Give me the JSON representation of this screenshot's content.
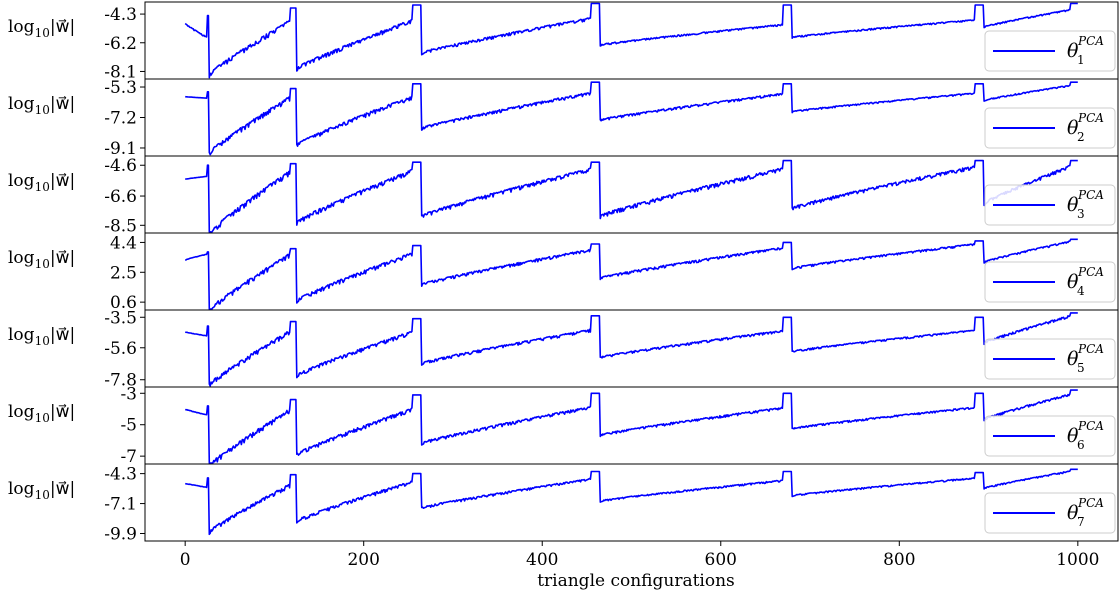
{
  "chart_data": {
    "type": "line",
    "xlabel": "triangle configurations",
    "xlim": [
      -45,
      1045
    ],
    "xticks": [
      0,
      200,
      400,
      600,
      800,
      1000
    ],
    "xtick_labels": [
      "0",
      "200",
      "400",
      "600",
      "800",
      "1000"
    ],
    "grid": false,
    "legend_placement": "right",
    "line_color": "#0000ff",
    "panels": [
      {
        "ylabel": "log10|w|",
        "ylabel_main": "log",
        "ylabel_sub": "10",
        "ylabel_rest": "|w⃗|",
        "yticks": [
          -4.3,
          -6.2,
          -8.1
        ],
        "ytick_labels": [
          "-4.3",
          "-6.2",
          "-8.1"
        ],
        "ylim": [
          -8.6,
          -3.5
        ],
        "legend": {
          "symbol": "θ",
          "sup": "PCA",
          "sub": "1"
        },
        "series": {
          "name": "θ1PCA",
          "segment_boundaries": [
            27,
            125,
            265,
            465,
            680,
            895
          ],
          "start": -4.9,
          "segment_starts": [
            -8.2,
            -7.8,
            -6.8,
            -6.3,
            -5.8,
            -5.1
          ],
          "segment_ends": [
            -5.9,
            -4.4,
            -4.4,
            -4.4,
            -4.9,
            -4.6,
            -3.9
          ],
          "peaks": [
            -4.4,
            -3.9,
            -3.7,
            -3.6,
            -3.7,
            -3.7,
            -3.6
          ]
        }
      },
      {
        "ylabel": "log10|w|",
        "ylabel_main": "log",
        "ylabel_sub": "10",
        "ylabel_rest": "|w⃗|",
        "yticks": [
          -5.3,
          -7.2,
          -9.1
        ],
        "ytick_labels": [
          "-5.3",
          "-7.2",
          "-9.1"
        ],
        "ylim": [
          -9.6,
          -4.8
        ],
        "legend": {
          "symbol": "θ",
          "sup": "PCA",
          "sub": "2"
        },
        "series": {
          "name": "θ2PCA",
          "segment_boundaries": [
            27,
            125,
            265,
            465,
            680,
            895
          ],
          "start": -5.9,
          "segment_starts": [
            -9.3,
            -8.8,
            -7.8,
            -7.3,
            -6.8,
            -6.1
          ],
          "segment_ends": [
            -6.0,
            -5.6,
            -5.6,
            -5.5,
            -5.6,
            -5.6,
            -5.1
          ],
          "peaks": [
            -5.6,
            -5.4,
            -5.1,
            -5.0,
            -5.1,
            -5.1,
            -5.0
          ]
        }
      },
      {
        "ylabel": "log10|w|",
        "ylabel_main": "log",
        "ylabel_sub": "10",
        "ylabel_rest": "|w⃗|",
        "yticks": [
          -4.6,
          -6.6,
          -8.5
        ],
        "ytick_labels": [
          "-4.6",
          "-6.6",
          "-8.5"
        ],
        "ylim": [
          -9.0,
          -4.0
        ],
        "legend": {
          "symbol": "θ",
          "sup": "PCA",
          "sub": "3"
        },
        "series": {
          "name": "θ3PCA",
          "segment_boundaries": [
            27,
            125,
            265,
            465,
            680,
            895
          ],
          "start": -5.5,
          "segment_starts": [
            -8.9,
            -8.2,
            -7.8,
            -7.8,
            -7.3,
            -7.0
          ],
          "segment_ends": [
            -5.3,
            -4.6,
            -4.6,
            -4.6,
            -4.6,
            -4.5,
            -4.4
          ],
          "peaks": [
            -4.6,
            -4.5,
            -4.4,
            -4.4,
            -4.3,
            -4.3,
            -4.3
          ]
        }
      },
      {
        "ylabel": "log10|w|",
        "ylabel_main": "log",
        "ylabel_sub": "10",
        "ylabel_rest": "|w⃗|",
        "yticks": [
          4.4,
          2.5,
          0.6
        ],
        "ytick_labels": [
          "4.4",
          "2.5",
          "0.6"
        ],
        "ylim": [
          0.1,
          5.0
        ],
        "legend": {
          "symbol": "θ",
          "sup": "PCA",
          "sub": "4"
        },
        "series": {
          "name": "θ4PCA",
          "segment_boundaries": [
            27,
            125,
            265,
            465,
            680,
            895
          ],
          "start": 3.3,
          "segment_starts": [
            0.2,
            0.8,
            1.8,
            2.2,
            2.8,
            3.2
          ],
          "segment_ends": [
            3.7,
            4.0,
            4.0,
            4.1,
            4.2,
            4.4,
            4.6
          ],
          "peaks": [
            3.8,
            4.0,
            4.2,
            4.3,
            4.4,
            4.5,
            4.6
          ]
        }
      },
      {
        "ylabel": "log10|w|",
        "ylabel_main": "log",
        "ylabel_sub": "10",
        "ylabel_rest": "|w⃗|",
        "yticks": [
          -3.5,
          -5.6,
          -7.8
        ],
        "ytick_labels": [
          "-3.5",
          "-5.6",
          "-7.8"
        ],
        "ylim": [
          -8.3,
          -3.0
        ],
        "legend": {
          "symbol": "θ",
          "sup": "PCA",
          "sub": "5"
        },
        "series": {
          "name": "θ5PCA",
          "segment_boundaries": [
            27,
            125,
            265,
            465,
            680,
            895
          ],
          "start": -4.5,
          "segment_starts": [
            -8.0,
            -7.4,
            -6.6,
            -6.2,
            -5.8,
            -5.2
          ],
          "segment_ends": [
            -4.8,
            -4.1,
            -4.2,
            -4.2,
            -4.3,
            -4.3,
            -3.2
          ],
          "peaks": [
            -4.1,
            -3.8,
            -3.6,
            -3.4,
            -3.5,
            -3.5,
            -3.2
          ]
        }
      },
      {
        "ylabel": "log10|w|",
        "ylabel_main": "log",
        "ylabel_sub": "10",
        "ylabel_rest": "|w⃗|",
        "yticks": [
          -3,
          -5,
          -7
        ],
        "ytick_labels": [
          "-3",
          "-5",
          "-7"
        ],
        "ylim": [
          -7.5,
          -2.6
        ],
        "legend": {
          "symbol": "θ",
          "sup": "PCA",
          "sub": "6"
        },
        "series": {
          "name": "θ6PCA",
          "segment_boundaries": [
            27,
            125,
            265,
            465,
            680,
            895
          ],
          "start": -4.0,
          "segment_starts": [
            -7.5,
            -6.8,
            -6.1,
            -5.6,
            -5.2,
            -4.6
          ],
          "segment_ends": [
            -4.4,
            -3.7,
            -3.7,
            -3.7,
            -3.8,
            -3.8,
            -2.9
          ],
          "peaks": [
            -3.8,
            -3.4,
            -3.1,
            -3.0,
            -3.0,
            -3.0,
            -2.8
          ]
        }
      },
      {
        "ylabel": "log10|w|",
        "ylabel_main": "log",
        "ylabel_sub": "10",
        "ylabel_rest": "|w⃗|",
        "yticks": [
          -4.3,
          -7.1,
          -9.9
        ],
        "ytick_labels": [
          "-4.3",
          "-7.1",
          "-9.9"
        ],
        "ylim": [
          -10.6,
          -3.4
        ],
        "legend": {
          "symbol": "θ",
          "sup": "PCA",
          "sub": "7"
        },
        "series": {
          "name": "θ7PCA",
          "segment_boundaries": [
            27,
            125,
            265,
            465,
            680,
            895
          ],
          "start": -5.2,
          "segment_starts": [
            -9.6,
            -8.6,
            -7.4,
            -6.8,
            -6.3,
            -5.6
          ],
          "segment_ends": [
            -5.6,
            -4.9,
            -4.7,
            -4.6,
            -4.8,
            -4.6,
            -3.9
          ],
          "peaks": [
            -4.7,
            -4.4,
            -4.3,
            -4.1,
            -4.1,
            -4.2,
            -3.9
          ]
        }
      }
    ]
  }
}
